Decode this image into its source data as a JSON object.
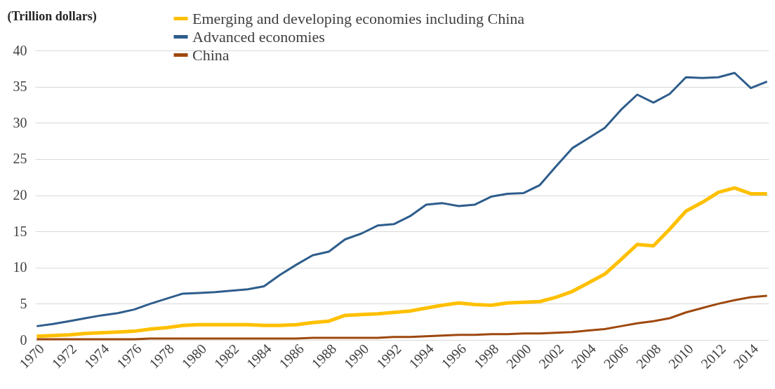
{
  "chart_data": {
    "type": "line",
    "ylabel": "(Trillion dollars)",
    "categories": [
      "1970",
      null,
      "1972",
      null,
      "1974",
      null,
      "1976",
      null,
      "1978",
      null,
      "1980",
      null,
      "1982",
      null,
      "1984",
      null,
      "1986",
      null,
      "1988",
      null,
      "1990",
      null,
      "1992",
      null,
      "1994",
      null,
      "1996",
      null,
      "1998",
      null,
      "2000",
      null,
      "2002",
      null,
      "2004",
      null,
      "2006",
      null,
      "2008",
      null,
      "2010",
      null,
      "2012",
      null,
      "2014",
      null
    ],
    "series": [
      {
        "name": "Emerging and developing economies including China",
        "color": "#ffc000",
        "values": [
          0.5,
          0.6,
          0.7,
          0.9,
          1.0,
          1.1,
          1.2,
          1.5,
          1.7,
          2.0,
          2.1,
          2.1,
          2.1,
          2.1,
          2.0,
          2.0,
          2.1,
          2.4,
          2.6,
          3.4,
          3.5,
          3.6,
          3.8,
          4.0,
          4.4,
          4.8,
          5.1,
          4.9,
          4.8,
          5.1,
          5.2,
          5.3,
          5.9,
          6.7,
          7.9,
          9.1,
          11.1,
          13.2,
          13.0,
          15.3,
          17.8,
          19.0,
          20.4,
          21.0,
          20.2,
          20.2
        ]
      },
      {
        "name": "Advanced economies",
        "color": "#2e5d8c",
        "values": [
          1.9,
          2.2,
          2.6,
          3.0,
          3.4,
          3.7,
          4.2,
          5.0,
          5.7,
          6.4,
          6.5,
          6.6,
          6.8,
          7.0,
          7.4,
          9.0,
          10.4,
          11.7,
          12.2,
          13.9,
          14.7,
          15.8,
          16.0,
          17.1,
          18.7,
          18.9,
          18.5,
          18.7,
          19.8,
          20.2,
          20.3,
          21.4,
          24.0,
          26.5,
          27.9,
          29.3,
          31.8,
          33.9,
          32.8,
          34.0,
          36.3,
          36.2,
          36.3,
          36.9,
          34.8,
          35.7
        ]
      },
      {
        "name": "China",
        "color": "#9e480e",
        "values": [
          0.1,
          0.1,
          0.1,
          0.1,
          0.1,
          0.1,
          0.1,
          0.2,
          0.2,
          0.2,
          0.2,
          0.2,
          0.2,
          0.2,
          0.2,
          0.2,
          0.2,
          0.3,
          0.3,
          0.3,
          0.3,
          0.3,
          0.4,
          0.4,
          0.5,
          0.6,
          0.7,
          0.7,
          0.8,
          0.8,
          0.9,
          0.9,
          1.0,
          1.1,
          1.3,
          1.5,
          1.9,
          2.3,
          2.6,
          3.0,
          3.8,
          4.4,
          5.0,
          5.5,
          5.9,
          6.1
        ]
      }
    ],
    "ylim": [
      0,
      40
    ],
    "yticks": [
      0,
      5,
      10,
      15,
      20,
      25,
      30,
      35,
      40
    ],
    "grid": "y",
    "legend": "top",
    "marker": "none",
    "line_style": "solid"
  }
}
